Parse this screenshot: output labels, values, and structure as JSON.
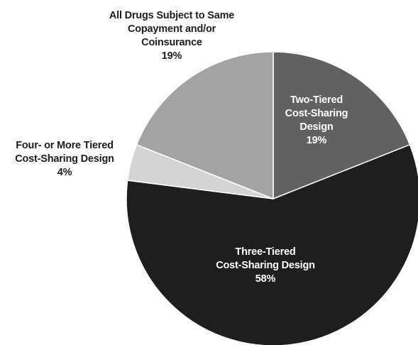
{
  "chart_data": {
    "type": "pie",
    "colors": [
      "#616161",
      "#1e1e1e",
      "#d4d4d4",
      "#a3a3a3"
    ],
    "label_colors": [
      "#ffffff",
      "#ffffff",
      "#1e1e1e",
      "#1e1e1e"
    ],
    "slices": [
      {
        "name": "Two-Tiered Cost-Sharing Design",
        "value": 19,
        "label_lines": [
          "Two-Tiered",
          "Cost-Sharing",
          "Design"
        ],
        "value_label": "19%"
      },
      {
        "name": "Three-Tiered Cost-Sharing Design",
        "value": 58,
        "label_lines": [
          "Three-Tiered",
          "Cost-Sharing Design"
        ],
        "value_label": "58%"
      },
      {
        "name": "Four- or More Tiered Cost-Sharing Design",
        "value": 4,
        "label_lines": [
          "Four- or More Tiered",
          "Cost-Sharing Design"
        ],
        "value_label": "4%"
      },
      {
        "name": "All Drugs Subject to Same Copayment and/or Coinsurance",
        "value": 19,
        "label_lines": [
          "All Drugs Subject to Same",
          "Copayment and/or",
          "Coinsurance"
        ],
        "value_label": "19%"
      }
    ]
  }
}
